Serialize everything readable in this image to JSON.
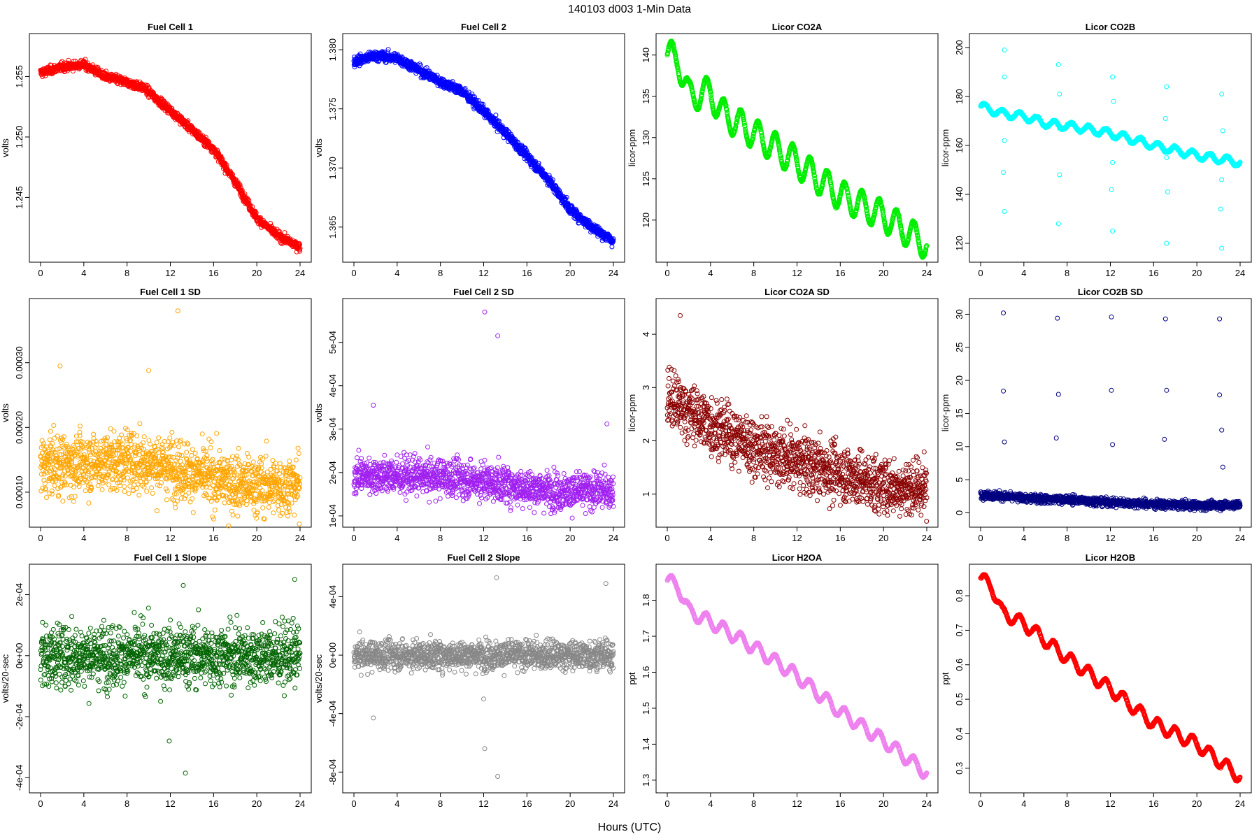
{
  "figure": {
    "title": "140103   d003   1-Min Data",
    "xlabel": "Hours (UTC)"
  },
  "chart_data": [
    {
      "type": "scatter",
      "title": "Fuel Cell 1",
      "ylabel": "volts",
      "color": "#ff0000",
      "xlim": [
        0,
        24
      ],
      "ylim": [
        1.2404,
        1.2578
      ],
      "xticks": [
        "0",
        "4",
        "8",
        "12",
        "16",
        "20",
        "24"
      ],
      "yticks": [
        {
          "v": 1.245,
          "label": "1.245"
        },
        {
          "v": 1.25,
          "label": "1.250"
        },
        {
          "v": 1.255,
          "label": "1.255"
        }
      ],
      "trend": [
        [
          0,
          1.2553
        ],
        [
          2,
          1.2558
        ],
        [
          4,
          1.256
        ],
        [
          6,
          1.255
        ],
        [
          8,
          1.2545
        ],
        [
          9.5,
          1.2541
        ],
        [
          12,
          1.2522
        ],
        [
          16,
          1.249
        ],
        [
          18,
          1.2463
        ],
        [
          20,
          1.2433
        ],
        [
          22,
          1.2418
        ],
        [
          24,
          1.2409
        ]
      ],
      "noise": 0.00025,
      "outliers": []
    },
    {
      "type": "scatter",
      "title": "Fuel Cell 2",
      "ylabel": "volts",
      "color": "#0000ff",
      "xlim": [
        0,
        24
      ],
      "ylim": [
        1.3628,
        1.3806
      ],
      "xticks": [
        "0",
        "4",
        "8",
        "12",
        "16",
        "20",
        "24"
      ],
      "yticks": [
        {
          "v": 1.365,
          "label": "1.365"
        },
        {
          "v": 1.37,
          "label": "1.370"
        },
        {
          "v": 1.375,
          "label": "1.375"
        },
        {
          "v": 1.38,
          "label": "1.380"
        }
      ],
      "trend": [
        [
          0,
          1.379
        ],
        [
          2,
          1.3795
        ],
        [
          4,
          1.3793
        ],
        [
          8,
          1.3773
        ],
        [
          10,
          1.3765
        ],
        [
          12,
          1.3748
        ],
        [
          14,
          1.373
        ],
        [
          16,
          1.371
        ],
        [
          18,
          1.369
        ],
        [
          20,
          1.3665
        ],
        [
          22,
          1.365
        ],
        [
          24,
          1.3638
        ]
      ],
      "noise": 0.0003,
      "outliers": []
    },
    {
      "type": "scatter",
      "title": "Licor CO2A",
      "ylabel": "licor-ppm",
      "color": "#00ee00",
      "xlim": [
        0,
        24
      ],
      "ylim": [
        116,
        141.5
      ],
      "xticks": [
        "0",
        "4",
        "8",
        "12",
        "16",
        "20",
        "24"
      ],
      "yticks": [
        {
          "v": 120,
          "label": "120"
        },
        {
          "v": 125,
          "label": "125"
        },
        {
          "v": 130,
          "label": "130"
        },
        {
          "v": 135,
          "label": "135"
        },
        {
          "v": 140,
          "label": "140"
        }
      ],
      "trend": [
        [
          0,
          140
        ],
        [
          1,
          139.5
        ],
        [
          2,
          135
        ],
        [
          4,
          135.5
        ],
        [
          5,
          133
        ],
        [
          8,
          130.5
        ],
        [
          12,
          127
        ],
        [
          16,
          123
        ],
        [
          20,
          120.5
        ],
        [
          24,
          117
        ]
      ],
      "wave": 1.8,
      "noise": 0.1,
      "outliers": []
    },
    {
      "type": "scatter",
      "title": "Licor CO2B",
      "ylabel": "licor-ppm",
      "color": "#00ffff",
      "xlim": [
        0,
        24
      ],
      "ylim": [
        116,
        202
      ],
      "xticks": [
        "0",
        "4",
        "8",
        "12",
        "16",
        "20",
        "24"
      ],
      "yticks": [
        {
          "v": 120,
          "label": "120"
        },
        {
          "v": 140,
          "label": "140"
        },
        {
          "v": 160,
          "label": "160"
        },
        {
          "v": 180,
          "label": "180"
        },
        {
          "v": 200,
          "label": "200"
        }
      ],
      "trend": [
        [
          0,
          176
        ],
        [
          2,
          173
        ],
        [
          4,
          172
        ],
        [
          6,
          169
        ],
        [
          8,
          168
        ],
        [
          12,
          165
        ],
        [
          16,
          160
        ],
        [
          20,
          156
        ],
        [
          24,
          153
        ]
      ],
      "wave": 1.5,
      "noise": 0.3,
      "outliers": [
        [
          2.2,
          199
        ],
        [
          2.2,
          188
        ],
        [
          2.2,
          162
        ],
        [
          2.1,
          149
        ],
        [
          2.2,
          133
        ],
        [
          7.2,
          193
        ],
        [
          7.3,
          181
        ],
        [
          7.3,
          167
        ],
        [
          7.3,
          148
        ],
        [
          7.2,
          128
        ],
        [
          12.2,
          188
        ],
        [
          12.3,
          178
        ],
        [
          12.2,
          153
        ],
        [
          12.1,
          142
        ],
        [
          12.2,
          125
        ],
        [
          17.2,
          184
        ],
        [
          17.1,
          171
        ],
        [
          17.2,
          155
        ],
        [
          17.3,
          141
        ],
        [
          17.2,
          120
        ],
        [
          22.3,
          181
        ],
        [
          22.4,
          166
        ],
        [
          22.3,
          146
        ],
        [
          22.2,
          134
        ],
        [
          22.3,
          118
        ]
      ]
    },
    {
      "type": "scatter",
      "title": "Fuel Cell 1 SD",
      "ylabel": "volts",
      "color": "#ffa500",
      "xlim": [
        0,
        24
      ],
      "ylim": [
        6e-05,
        0.000385
      ],
      "xticks": [
        "0",
        "4",
        "8",
        "12",
        "16",
        "20",
        "24"
      ],
      "yticks": [
        {
          "v": 0.0001,
          "label": "0.00010"
        },
        {
          "v": 0.0002,
          "label": "0.00020"
        },
        {
          "v": 0.0003,
          "label": "0.00030"
        }
      ],
      "trend": [
        [
          0,
          0.00014
        ],
        [
          8,
          0.00015
        ],
        [
          12,
          0.00014
        ],
        [
          16,
          0.00012
        ],
        [
          20,
          0.00011
        ],
        [
          24,
          0.00011
        ]
      ],
      "noise": 3.2e-05,
      "outliers": [
        [
          12.7,
          0.00038
        ],
        [
          1.8,
          0.000295
        ],
        [
          10,
          0.000288
        ]
      ]
    },
    {
      "type": "scatter",
      "title": "Fuel Cell 2 SD",
      "ylabel": "volts",
      "color": "#a020f0",
      "xlim": [
        0,
        24
      ],
      "ylim": [
        9.5e-05,
        0.00058
      ],
      "xticks": [
        "0",
        "4",
        "8",
        "12",
        "16",
        "20",
        "24"
      ],
      "yticks": [
        {
          "v": 0.0001,
          "label": "1e-04"
        },
        {
          "v": 0.0002,
          "label": "2e-04"
        },
        {
          "v": 0.0003,
          "label": "3e-04"
        },
        {
          "v": 0.0004,
          "label": "4e-04"
        },
        {
          "v": 0.0005,
          "label": "5e-04"
        }
      ],
      "trend": [
        [
          0,
          0.000195
        ],
        [
          8,
          0.00019
        ],
        [
          12,
          0.00018
        ],
        [
          16,
          0.000165
        ],
        [
          20,
          0.000155
        ],
        [
          24,
          0.00016
        ]
      ],
      "noise": 3e-05,
      "outliers": [
        [
          12.1,
          0.00057
        ],
        [
          13.3,
          0.000515
        ],
        [
          1.8,
          0.000355
        ],
        [
          23.4,
          0.000312
        ]
      ]
    },
    {
      "type": "scatter",
      "title": "Licor CO2A SD",
      "ylabel": "licor-ppm",
      "color": "#8b0000",
      "xlim": [
        0,
        24
      ],
      "ylim": [
        0.55,
        4.5
      ],
      "xticks": [
        "0",
        "4",
        "8",
        "12",
        "16",
        "20",
        "24"
      ],
      "yticks": [
        {
          "v": 1,
          "label": "1"
        },
        {
          "v": 2,
          "label": "2"
        },
        {
          "v": 3,
          "label": "3"
        },
        {
          "v": 4,
          "label": "4"
        }
      ],
      "trend": [
        [
          0,
          2.8
        ],
        [
          4,
          2.3
        ],
        [
          8,
          1.9
        ],
        [
          12,
          1.6
        ],
        [
          16,
          1.4
        ],
        [
          20,
          1.15
        ],
        [
          24,
          1.1
        ]
      ],
      "noise": 0.38,
      "outliers": [
        [
          1.2,
          4.35
        ]
      ]
    },
    {
      "type": "scatter",
      "title": "Licor CO2B SD",
      "ylabel": "licor-ppm",
      "color": "#000080",
      "xlim": [
        0,
        24
      ],
      "ylim": [
        -0.8,
        31
      ],
      "xticks": [
        "0",
        "4",
        "8",
        "12",
        "16",
        "20",
        "24"
      ],
      "yticks": [
        {
          "v": 0,
          "label": "0"
        },
        {
          "v": 5,
          "label": "5"
        },
        {
          "v": 10,
          "label": "10"
        },
        {
          "v": 15,
          "label": "15"
        },
        {
          "v": 20,
          "label": "20"
        },
        {
          "v": 25,
          "label": "25"
        },
        {
          "v": 30,
          "label": "30"
        }
      ],
      "trend": [
        [
          0,
          2.8
        ],
        [
          4,
          2.2
        ],
        [
          8,
          2.0
        ],
        [
          12,
          1.6
        ],
        [
          16,
          1.3
        ],
        [
          20,
          1.1
        ],
        [
          24,
          1.2
        ]
      ],
      "noise": 0.45,
      "outliers": [
        [
          2.1,
          30.2
        ],
        [
          2.1,
          18.4
        ],
        [
          2.2,
          10.7
        ],
        [
          7.1,
          29.4
        ],
        [
          7.2,
          17.9
        ],
        [
          7.0,
          11.3
        ],
        [
          12.1,
          29.6
        ],
        [
          12.1,
          18.5
        ],
        [
          12.2,
          10.3
        ],
        [
          17.1,
          29.3
        ],
        [
          17.2,
          18.5
        ],
        [
          17.0,
          11.1
        ],
        [
          22.1,
          29.3
        ],
        [
          22.1,
          17.8
        ],
        [
          22.3,
          12.5
        ],
        [
          22.4,
          6.9
        ]
      ]
    },
    {
      "type": "scatter",
      "title": "Fuel Cell 1 Slope",
      "ylabel": "volts/20-sec",
      "color": "#006400",
      "xlim": [
        0,
        24
      ],
      "ylim": [
        -0.00042,
        0.00027
      ],
      "xticks": [
        "0",
        "4",
        "8",
        "12",
        "16",
        "20",
        "24"
      ],
      "yticks": [
        {
          "v": -0.0004,
          "label": "-4e-04"
        },
        {
          "v": -0.0002,
          "label": "-2e-04"
        },
        {
          "v": 0,
          "label": "0e+00"
        },
        {
          "v": 0.0002,
          "label": "2e-04"
        }
      ],
      "trend": [
        [
          0,
          0
        ],
        [
          24,
          0
        ]
      ],
      "noise": 7e-05,
      "outliers": [
        [
          13.4,
          -0.000385
        ],
        [
          11.9,
          -0.00028
        ],
        [
          23.5,
          0.00025
        ],
        [
          13.2,
          0.00023
        ]
      ]
    },
    {
      "type": "scatter",
      "title": "Fuel Cell 2 Slope",
      "ylabel": "volts/20-sec",
      "color": "#888888",
      "xlim": [
        0,
        24
      ],
      "ylim": [
        -0.00088,
        0.00056
      ],
      "xticks": [
        "0",
        "4",
        "8",
        "12",
        "16",
        "20",
        "24"
      ],
      "yticks": [
        {
          "v": -0.0008,
          "label": "-8e-04"
        },
        {
          "v": -0.0004,
          "label": "-4e-04"
        },
        {
          "v": 0,
          "label": "0e+00"
        },
        {
          "v": 0.0004,
          "label": "4e-04"
        }
      ],
      "trend": [
        [
          0,
          0
        ],
        [
          24,
          0
        ]
      ],
      "noise": 7e-05,
      "outliers": [
        [
          13.3,
          -0.00083
        ],
        [
          12.1,
          -0.00064
        ],
        [
          13.2,
          0.00053
        ],
        [
          23.3,
          0.00049
        ],
        [
          12,
          -0.0003
        ],
        [
          1.8,
          -0.00043
        ]
      ]
    },
    {
      "type": "scatter",
      "title": "Licor H2OA",
      "ylabel": "ppt",
      "color": "#ee82ee",
      "xlim": [
        0,
        24
      ],
      "ylim": [
        1.29,
        1.875
      ],
      "xticks": [
        "0",
        "4",
        "8",
        "12",
        "16",
        "20",
        "24"
      ],
      "yticks": [
        {
          "v": 1.3,
          "label": "1.3"
        },
        {
          "v": 1.4,
          "label": "1.4"
        },
        {
          "v": 1.5,
          "label": "1.5"
        },
        {
          "v": 1.6,
          "label": "1.6"
        },
        {
          "v": 1.7,
          "label": "1.7"
        },
        {
          "v": 1.8,
          "label": "1.8"
        }
      ],
      "trend": [
        [
          0,
          1.855
        ],
        [
          1,
          1.84
        ],
        [
          2,
          1.77
        ],
        [
          4,
          1.74
        ],
        [
          8,
          1.67
        ],
        [
          12,
          1.59
        ],
        [
          16,
          1.49
        ],
        [
          20,
          1.41
        ],
        [
          24,
          1.32
        ]
      ],
      "wave": 0.018,
      "noise": 0.002,
      "outliers": []
    },
    {
      "type": "scatter",
      "title": "Licor H2OB",
      "ylabel": "ppt",
      "color": "#ff0000",
      "xlim": [
        0,
        24
      ],
      "ylim": [
        0.255,
        0.865
      ],
      "xticks": [
        "0",
        "4",
        "8",
        "12",
        "16",
        "20",
        "24"
      ],
      "yticks": [
        {
          "v": 0.3,
          "label": "0.3"
        },
        {
          "v": 0.4,
          "label": "0.4"
        },
        {
          "v": 0.5,
          "label": "0.5"
        },
        {
          "v": 0.6,
          "label": "0.6"
        },
        {
          "v": 0.7,
          "label": "0.7"
        },
        {
          "v": 0.8,
          "label": "0.8"
        }
      ],
      "trend": [
        [
          0,
          0.85
        ],
        [
          1,
          0.83
        ],
        [
          2,
          0.75
        ],
        [
          4,
          0.72
        ],
        [
          8,
          0.62
        ],
        [
          12,
          0.53
        ],
        [
          16,
          0.43
        ],
        [
          20,
          0.37
        ],
        [
          24,
          0.275
        ]
      ],
      "wave": 0.018,
      "noise": 0.002,
      "outliers": []
    }
  ]
}
